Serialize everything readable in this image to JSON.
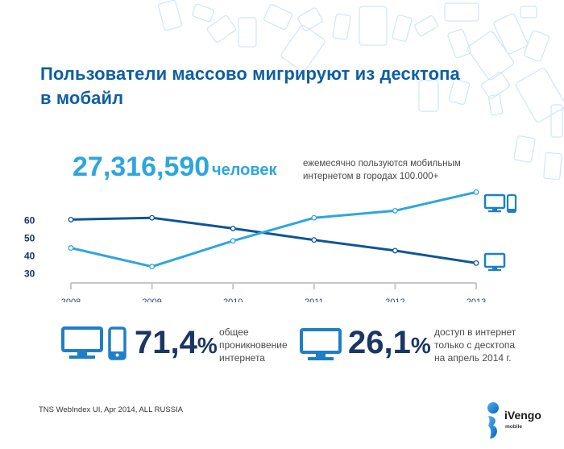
{
  "title_line1": "Пользователи массово мигрируют из десктопа",
  "title_line2": "в мобайл",
  "headline": {
    "number": "27,316,590",
    "unit": "человек",
    "desc_line1": "ежемесячно пользуются мобильным",
    "desc_line2": "интернетом в городах 100.000+"
  },
  "stats": [
    {
      "value": "71,4",
      "suffix": "%",
      "line1": "общее",
      "line2": "проникновение",
      "line3": "интернета",
      "icons": [
        "desktop-icon",
        "smartphone-icon"
      ]
    },
    {
      "value": "26,1",
      "suffix": "%",
      "line1": "доступ в интернет",
      "line2": "только с десктопа",
      "line3": "на апрель 2014 г.",
      "icons": [
        "desktop-icon"
      ]
    }
  ],
  "source": "TNS WebIndex UI, Apr 2014, ALL RUSSIA",
  "logo": {
    "name": "iVengo",
    "sub": "mobile"
  },
  "colors": {
    "title": "#0d5fa3",
    "accent_light": "#2ea6dd",
    "accent_dark": "#0f5596",
    "stat": "#1a3664",
    "axis": "#c8c8c8",
    "icon": "#1e7fc8"
  },
  "chart_data": {
    "type": "line",
    "title": "",
    "xlabel": "",
    "ylabel": "",
    "x": [
      "2008",
      "2009",
      "2010",
      "2011",
      "2012",
      "2013"
    ],
    "yticks": [
      "60",
      "50",
      "40",
      "30"
    ],
    "ylim": [
      27,
      77
    ],
    "grid": false,
    "series": [
      {
        "name": "desktop-only",
        "color": "#0f5596",
        "legend_icon": "desktop-icon",
        "values": [
          60,
          61,
          55,
          48.5,
          42.5,
          35.5
        ]
      },
      {
        "name": "desktop-and-mobile",
        "color": "#2ea6dd",
        "legend_icon": "desktop-and-smartphone-icon",
        "values": [
          44,
          33.5,
          48,
          61,
          65,
          75.5
        ]
      }
    ]
  }
}
